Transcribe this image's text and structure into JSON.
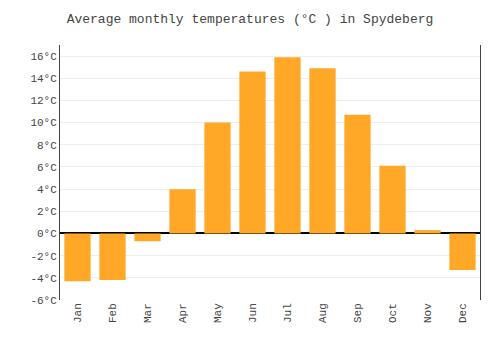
{
  "chart_data": {
    "type": "bar",
    "title": "Average monthly temperatures (°C ) in Spydeberg",
    "categories": [
      "Jan",
      "Feb",
      "Mar",
      "Apr",
      "May",
      "Jun",
      "Jul",
      "Aug",
      "Sep",
      "Oct",
      "Nov",
      "Dec"
    ],
    "values": [
      -4.3,
      -4.2,
      -0.7,
      4.0,
      10.0,
      14.6,
      15.9,
      14.9,
      10.7,
      6.1,
      0.3,
      -3.3
    ],
    "color": "#FFA726",
    "ylim": [
      -6,
      17
    ],
    "yticks": [
      {
        "value": -6,
        "label": "-6°C"
      },
      {
        "value": -4,
        "label": "-4°C"
      },
      {
        "value": -2,
        "label": "-2°C"
      },
      {
        "value": 0,
        "label": "0°C"
      },
      {
        "value": 2,
        "label": "2°C"
      },
      {
        "value": 4,
        "label": "4°C"
      },
      {
        "value": 6,
        "label": "6°C"
      },
      {
        "value": 8,
        "label": "8°C"
      },
      {
        "value": 10,
        "label": "10°C"
      },
      {
        "value": 12,
        "label": "12°C"
      },
      {
        "value": 14,
        "label": "14°C"
      },
      {
        "value": 16,
        "label": "16°C"
      }
    ],
    "grid": true
  }
}
